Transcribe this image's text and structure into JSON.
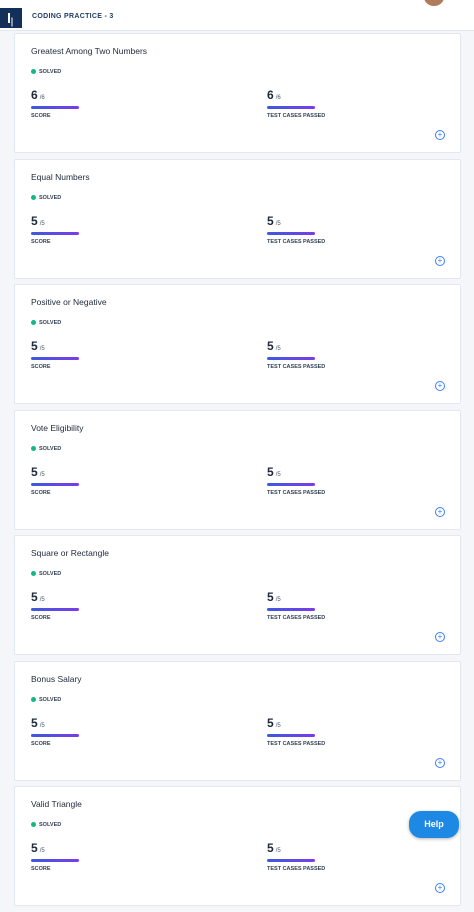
{
  "header": {
    "title": "CODING PRACTICE - 3"
  },
  "problems": [
    {
      "title": "Greatest Among Two Numbers",
      "status": "SOLVED",
      "score": "6",
      "score_total": "/6",
      "score_label": "SCORE",
      "tests": "6",
      "tests_total": "/6",
      "tests_label": "TEST CASES PASSED"
    },
    {
      "title": "Equal Numbers",
      "status": "SOLVED",
      "score": "5",
      "score_total": "/5",
      "score_label": "SCORE",
      "tests": "5",
      "tests_total": "/5",
      "tests_label": "TEST CASES PASSED"
    },
    {
      "title": "Positive or Negative",
      "status": "SOLVED",
      "score": "5",
      "score_total": "/5",
      "score_label": "SCORE",
      "tests": "5",
      "tests_total": "/5",
      "tests_label": "TEST CASES PASSED"
    },
    {
      "title": "Vote Eligibility",
      "status": "SOLVED",
      "score": "5",
      "score_total": "/5",
      "score_label": "SCORE",
      "tests": "5",
      "tests_total": "/5",
      "tests_label": "TEST CASES PASSED"
    },
    {
      "title": "Square or Rectangle",
      "status": "SOLVED",
      "score": "5",
      "score_total": "/5",
      "score_label": "SCORE",
      "tests": "5",
      "tests_total": "/5",
      "tests_label": "TEST CASES PASSED"
    },
    {
      "title": "Bonus Salary",
      "status": "SOLVED",
      "score": "5",
      "score_total": "/5",
      "score_label": "SCORE",
      "tests": "5",
      "tests_total": "/5",
      "tests_label": "TEST CASES PASSED"
    },
    {
      "title": "Valid Triangle",
      "status": "SOLVED",
      "score": "5",
      "score_total": "/5",
      "score_label": "SCORE",
      "tests": "5",
      "tests_total": "/5",
      "tests_label": "TEST CASES PASSED"
    }
  ],
  "help": "Help"
}
